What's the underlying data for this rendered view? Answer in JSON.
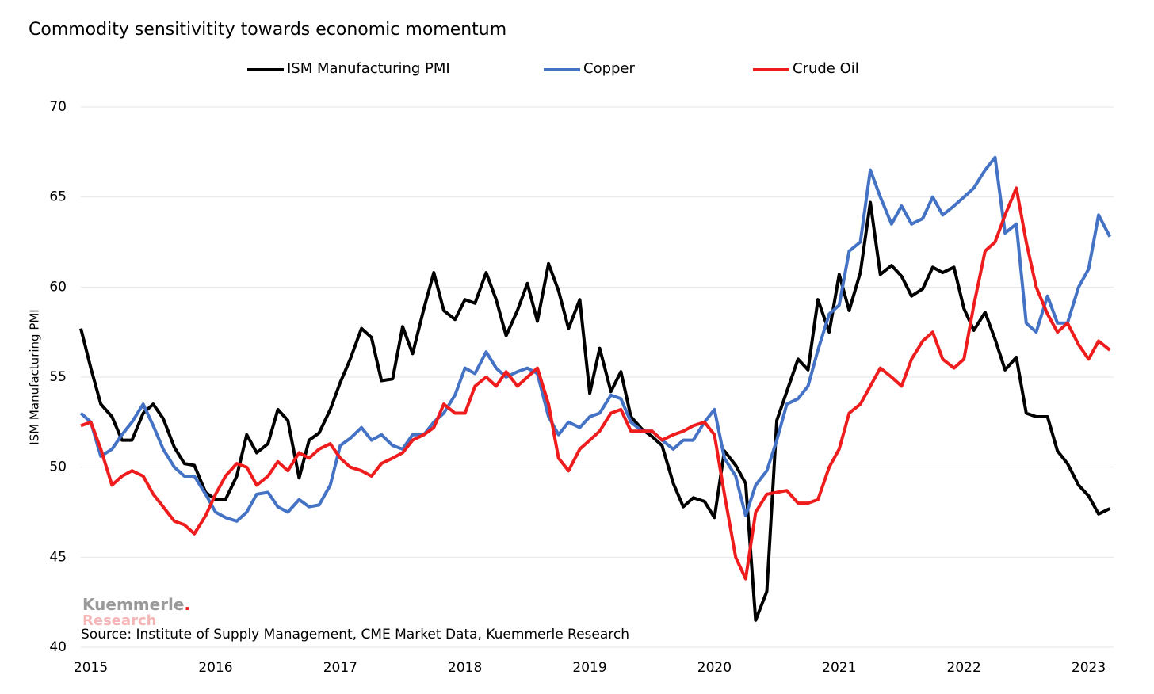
{
  "chart_data": {
    "type": "line",
    "title": "Commodity sensitivitity towards economic momentum",
    "y_label": "ISM Manufacturing PMI",
    "source": "Source: Institute of Supply Management, CME Market Data, Kuemmerle Research",
    "logo": {
      "name": "Kuemmerle",
      "dot": ".",
      "sub": "Research"
    },
    "x": [
      2014.92,
      2015.0,
      2015.08,
      2015.17,
      2015.25,
      2015.33,
      2015.42,
      2015.5,
      2015.58,
      2015.67,
      2015.75,
      2015.83,
      2015.92,
      2016.0,
      2016.08,
      2016.17,
      2016.25,
      2016.33,
      2016.42,
      2016.5,
      2016.58,
      2016.67,
      2016.75,
      2016.83,
      2016.92,
      2017.0,
      2017.08,
      2017.17,
      2017.25,
      2017.33,
      2017.42,
      2017.5,
      2017.58,
      2017.67,
      2017.75,
      2017.83,
      2017.92,
      2018.0,
      2018.08,
      2018.17,
      2018.25,
      2018.33,
      2018.42,
      2018.5,
      2018.58,
      2018.67,
      2018.75,
      2018.83,
      2018.92,
      2019.0,
      2019.08,
      2019.17,
      2019.25,
      2019.33,
      2019.42,
      2019.5,
      2019.58,
      2019.67,
      2019.75,
      2019.83,
      2019.92,
      2020.0,
      2020.08,
      2020.17,
      2020.25,
      2020.33,
      2020.42,
      2020.5,
      2020.58,
      2020.67,
      2020.75,
      2020.83,
      2020.92,
      2021.0,
      2021.08,
      2021.17,
      2021.25,
      2021.33,
      2021.42,
      2021.5,
      2021.58,
      2021.67,
      2021.75,
      2021.83,
      2021.92,
      2022.0,
      2022.08,
      2022.17,
      2022.25,
      2022.33,
      2022.42,
      2022.5,
      2022.58,
      2022.67,
      2022.75,
      2022.83,
      2022.92,
      2023.0,
      2023.08,
      2023.17
    ],
    "series": [
      {
        "name": "ISM Manufacturing PMI",
        "color": "#000000",
        "values": [
          57.7,
          55.5,
          53.5,
          52.8,
          51.5,
          51.5,
          53.0,
          53.5,
          52.7,
          51.1,
          50.2,
          50.1,
          48.6,
          48.2,
          48.2,
          49.5,
          51.8,
          50.8,
          51.3,
          53.2,
          52.6,
          49.4,
          51.5,
          51.9,
          53.2,
          54.7,
          56.0,
          57.7,
          57.2,
          54.8,
          54.9,
          57.8,
          56.3,
          58.8,
          60.8,
          58.7,
          58.2,
          59.3,
          59.1,
          60.8,
          59.3,
          57.3,
          58.7,
          60.2,
          58.1,
          61.3,
          59.8,
          57.7,
          59.3,
          54.1,
          56.6,
          54.2,
          55.3,
          52.8,
          52.1,
          51.7,
          51.2,
          49.1,
          47.8,
          48.3,
          48.1,
          47.2,
          50.9,
          50.1,
          49.1,
          41.5,
          43.1,
          52.6,
          54.2,
          56.0,
          55.4,
          59.3,
          57.5,
          60.7,
          58.7,
          60.8,
          64.7,
          60.7,
          61.2,
          60.6,
          59.5,
          59.9,
          61.1,
          60.8,
          61.1,
          58.8,
          57.6,
          58.6,
          57.1,
          55.4,
          56.1,
          53.0,
          52.8,
          52.8,
          50.9,
          50.2,
          49.0,
          48.4,
          47.4,
          47.7
        ]
      },
      {
        "name": "Copper",
        "color": "#4472c4",
        "values": [
          53.0,
          52.5,
          50.6,
          51.0,
          51.8,
          52.5,
          53.5,
          52.3,
          51.0,
          50.0,
          49.5,
          49.5,
          48.5,
          47.5,
          47.2,
          47.0,
          47.5,
          48.5,
          48.6,
          47.8,
          47.5,
          48.2,
          47.8,
          47.9,
          49.0,
          51.2,
          51.6,
          52.2,
          51.5,
          51.8,
          51.2,
          51.0,
          51.8,
          51.8,
          52.5,
          53.0,
          54.0,
          55.5,
          55.2,
          56.4,
          55.5,
          55.0,
          55.3,
          55.5,
          55.2,
          52.8,
          51.8,
          52.5,
          52.2,
          52.8,
          53.0,
          54.0,
          53.8,
          52.5,
          52.0,
          52.0,
          51.5,
          51.0,
          51.5,
          51.5,
          52.5,
          53.2,
          50.5,
          49.5,
          47.3,
          49.0,
          49.8,
          51.5,
          53.5,
          53.8,
          54.5,
          56.5,
          58.5,
          59.0,
          62.0,
          62.5,
          66.5,
          65.0,
          63.5,
          64.5,
          63.5,
          63.8,
          65.0,
          64.0,
          64.5,
          65.0,
          65.5,
          66.5,
          67.2,
          63.0,
          63.5,
          58.0,
          57.5,
          59.5,
          58.0,
          58.0,
          60.0,
          61.0,
          64.0,
          62.8
        ]
      },
      {
        "name": "Crude Oil",
        "color": "#ee1c1c",
        "values": [
          52.3,
          52.5,
          51.0,
          49.0,
          49.5,
          49.8,
          49.5,
          48.5,
          47.8,
          47.0,
          46.8,
          46.3,
          47.3,
          48.5,
          49.5,
          50.2,
          50.0,
          49.0,
          49.5,
          50.3,
          49.8,
          50.8,
          50.5,
          51.0,
          51.3,
          50.5,
          50.0,
          49.8,
          49.5,
          50.2,
          50.5,
          50.8,
          51.5,
          51.8,
          52.2,
          53.5,
          53.0,
          53.0,
          54.5,
          55.0,
          54.5,
          55.3,
          54.5,
          55.0,
          55.5,
          53.5,
          50.5,
          49.8,
          51.0,
          51.5,
          52.0,
          53.0,
          53.2,
          52.0,
          52.0,
          52.0,
          51.5,
          51.8,
          52.0,
          52.3,
          52.5,
          51.8,
          48.5,
          45.0,
          43.8,
          47.5,
          48.5,
          48.6,
          48.7,
          48.0,
          48.0,
          48.2,
          50.0,
          51.0,
          53.0,
          53.5,
          54.5,
          55.5,
          55.0,
          54.5,
          56.0,
          57.0,
          57.5,
          56.0,
          55.5,
          56.0,
          59.0,
          62.0,
          62.5,
          64.0,
          65.5,
          62.5,
          60.0,
          58.5,
          57.5,
          58.0,
          56.8,
          56.0,
          57.0,
          56.5
        ]
      }
    ],
    "xlim": [
      2014.92,
      2023.2
    ],
    "xticks": [
      2015,
      2016,
      2017,
      2018,
      2019,
      2020,
      2021,
      2022,
      2023
    ],
    "ylim": [
      40,
      70
    ],
    "yticks": [
      40,
      45,
      50,
      55,
      60,
      65,
      70
    ],
    "grid": true
  }
}
